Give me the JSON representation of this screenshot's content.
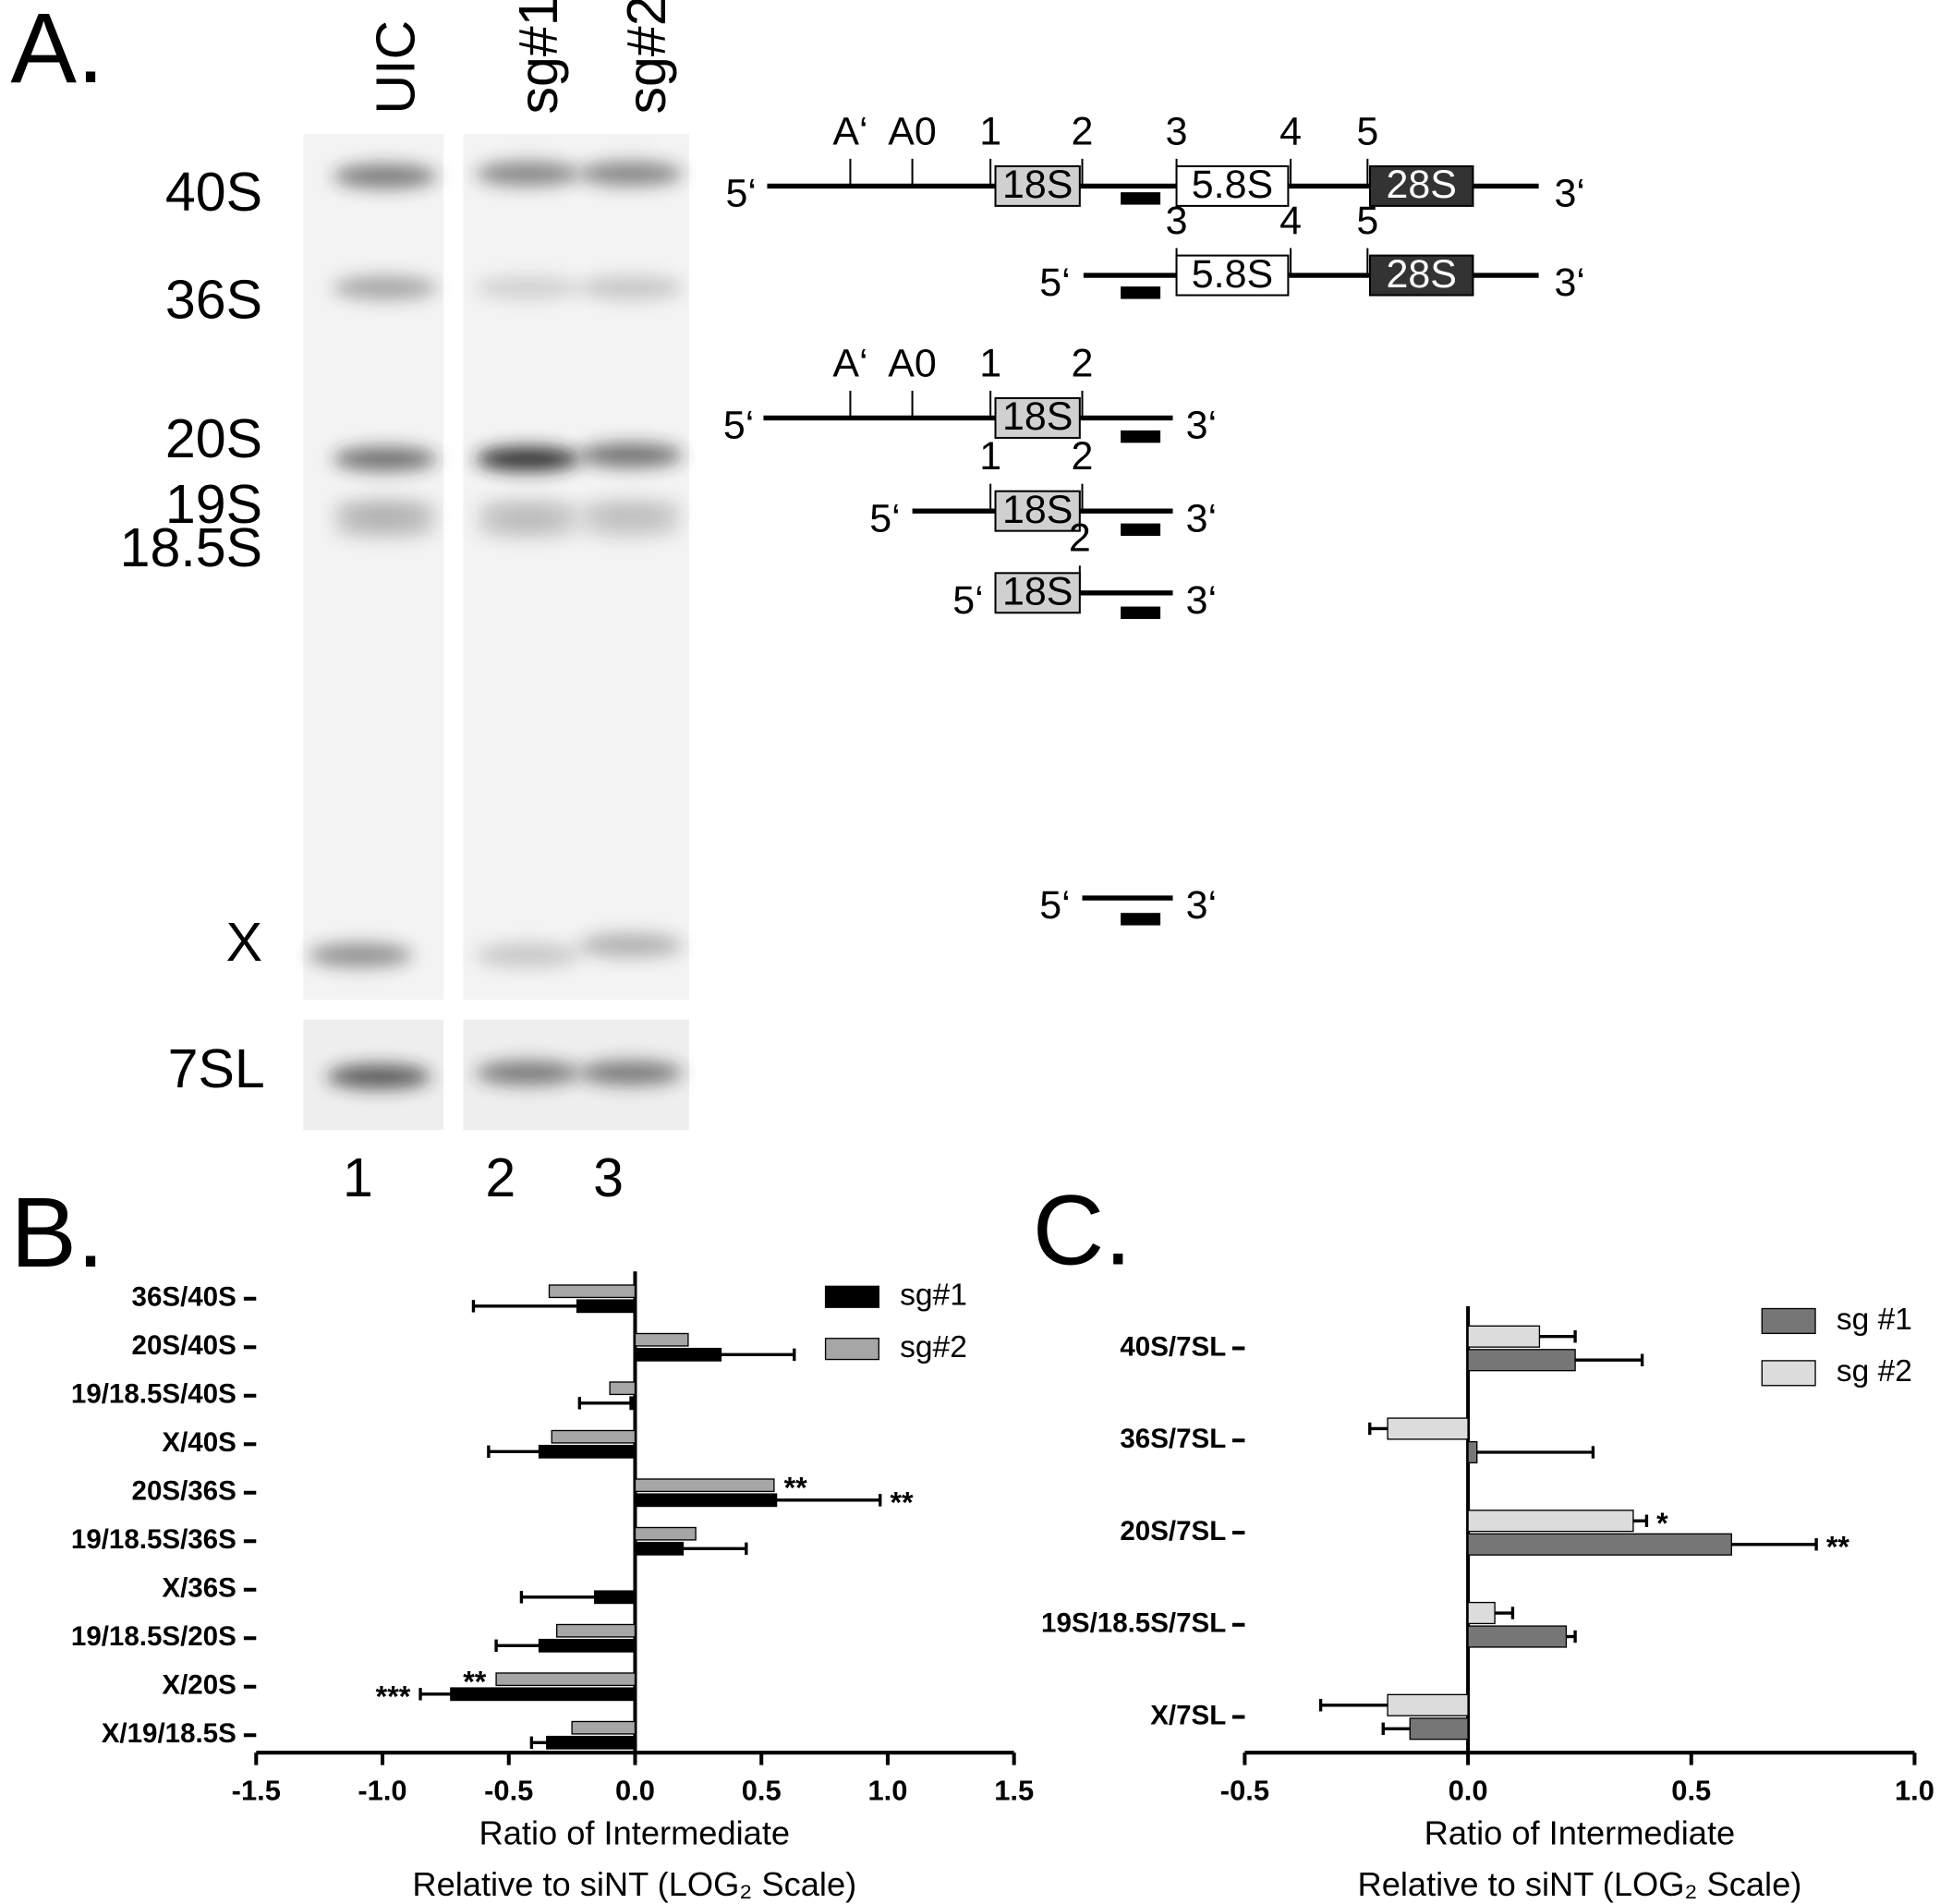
{
  "panels": {
    "a": "A.",
    "b": "B.",
    "c": "C."
  },
  "gel": {
    "lanes": [
      "UIC",
      "sg#1",
      "sg#2"
    ],
    "bands": [
      "40S",
      "36S",
      "20S",
      "19S",
      "18.5S",
      "X"
    ],
    "loading": "7SL",
    "lane_numbers": [
      "1",
      "2",
      "3"
    ]
  },
  "diagram": {
    "rows": [
      {
        "ends": [
          "5‘",
          "3‘"
        ],
        "sites": [
          "A‘",
          "A0",
          "1",
          "2",
          "3",
          "4",
          "5"
        ],
        "boxes": [
          "18S",
          "5.8S",
          "28S"
        ]
      },
      {
        "ends": [
          "5‘",
          "3‘"
        ],
        "sites": [
          "3",
          "4",
          "5"
        ],
        "boxes": [
          "5.8S",
          "28S"
        ]
      },
      {
        "ends": [
          "5‘",
          "3‘"
        ],
        "sites": [
          "A‘",
          "A0",
          "1",
          "2"
        ],
        "boxes": [
          "18S"
        ]
      },
      {
        "ends": [
          "5‘",
          "3‘"
        ],
        "sites": [
          "1",
          "2"
        ],
        "boxes": [
          "18S"
        ]
      },
      {
        "ends": [
          "5‘",
          "3‘"
        ],
        "sites": [
          "2"
        ],
        "boxes": [
          "18S"
        ]
      },
      {
        "ends": [
          "5‘",
          "3‘"
        ],
        "sites": [],
        "boxes": []
      }
    ]
  },
  "chart_data": [
    {
      "type": "bar",
      "orientation": "horizontal",
      "x_label": [
        "Ratio of Intermediate",
        "Relative to siNT (LOG₂ Scale)"
      ],
      "categories": [
        "36S/40S",
        "20S/40S",
        "19/18.5S/40S",
        "X/40S",
        "20S/36S",
        "19/18.5S/36S",
        "X/36S",
        "19/18.5S/20S",
        "X/20S",
        "X/19/18.5S"
      ],
      "series": [
        {
          "name": "sg#1",
          "color": "#000000",
          "values": [
            -0.23,
            0.34,
            -0.02,
            -0.38,
            0.56,
            0.19,
            -0.16,
            -0.38,
            -0.73,
            -0.35
          ],
          "errors": [
            0.41,
            0.29,
            0.2,
            0.2,
            0.41,
            0.25,
            0.29,
            0.17,
            0.12,
            0.06
          ],
          "significance": [
            null,
            null,
            null,
            null,
            "**",
            null,
            null,
            null,
            "***",
            null
          ]
        },
        {
          "name": "sg#2",
          "color": "#a6a6a6",
          "values": [
            -0.34,
            0.21,
            -0.1,
            -0.33,
            0.55,
            0.24,
            0,
            -0.31,
            -0.55,
            -0.25
          ],
          "significance": [
            null,
            null,
            null,
            null,
            "**",
            null,
            null,
            null,
            "**",
            null
          ]
        }
      ],
      "xlim": [
        -1.5,
        1.5
      ],
      "xticks": [
        -1.5,
        {
          "value": -1,
          "label": "-1.0"
        },
        -0.5,
        {
          "value": 0,
          "label": "0.0"
        },
        0.5,
        {
          "value": 1,
          "label": "1.0"
        },
        1.5
      ]
    },
    {
      "type": "bar",
      "orientation": "horizontal",
      "x_label": [
        "Ratio of Intermediate",
        "Relative to siNT (LOG₂ Scale)"
      ],
      "categories": [
        "40S/7SL",
        "36S/7SL",
        "20S/7SL",
        "19S/18.5S/7SL",
        "X/7SL"
      ],
      "series": [
        {
          "name": "sg #1",
          "color": "#767676",
          "values": [
            0.24,
            0.02,
            0.59,
            0.22,
            -0.13
          ],
          "errors": [
            0.15,
            0.26,
            0.19,
            0.02,
            0.06
          ],
          "significance": [
            null,
            null,
            "**",
            null,
            null
          ]
        },
        {
          "name": "sg #2",
          "color": "#dcdcdc",
          "values": [
            0.16,
            -0.18,
            0.37,
            0.06,
            -0.18
          ],
          "errors": [
            0.08,
            0.04,
            0.03,
            0.04,
            0.15
          ],
          "significance": [
            null,
            null,
            "*",
            null,
            null
          ]
        }
      ],
      "xlim": [
        -0.5,
        1
      ],
      "xticks": [
        -0.5,
        {
          "value": 0,
          "label": "0.0"
        },
        0.5,
        {
          "value": 1,
          "label": "1.0"
        }
      ]
    }
  ]
}
